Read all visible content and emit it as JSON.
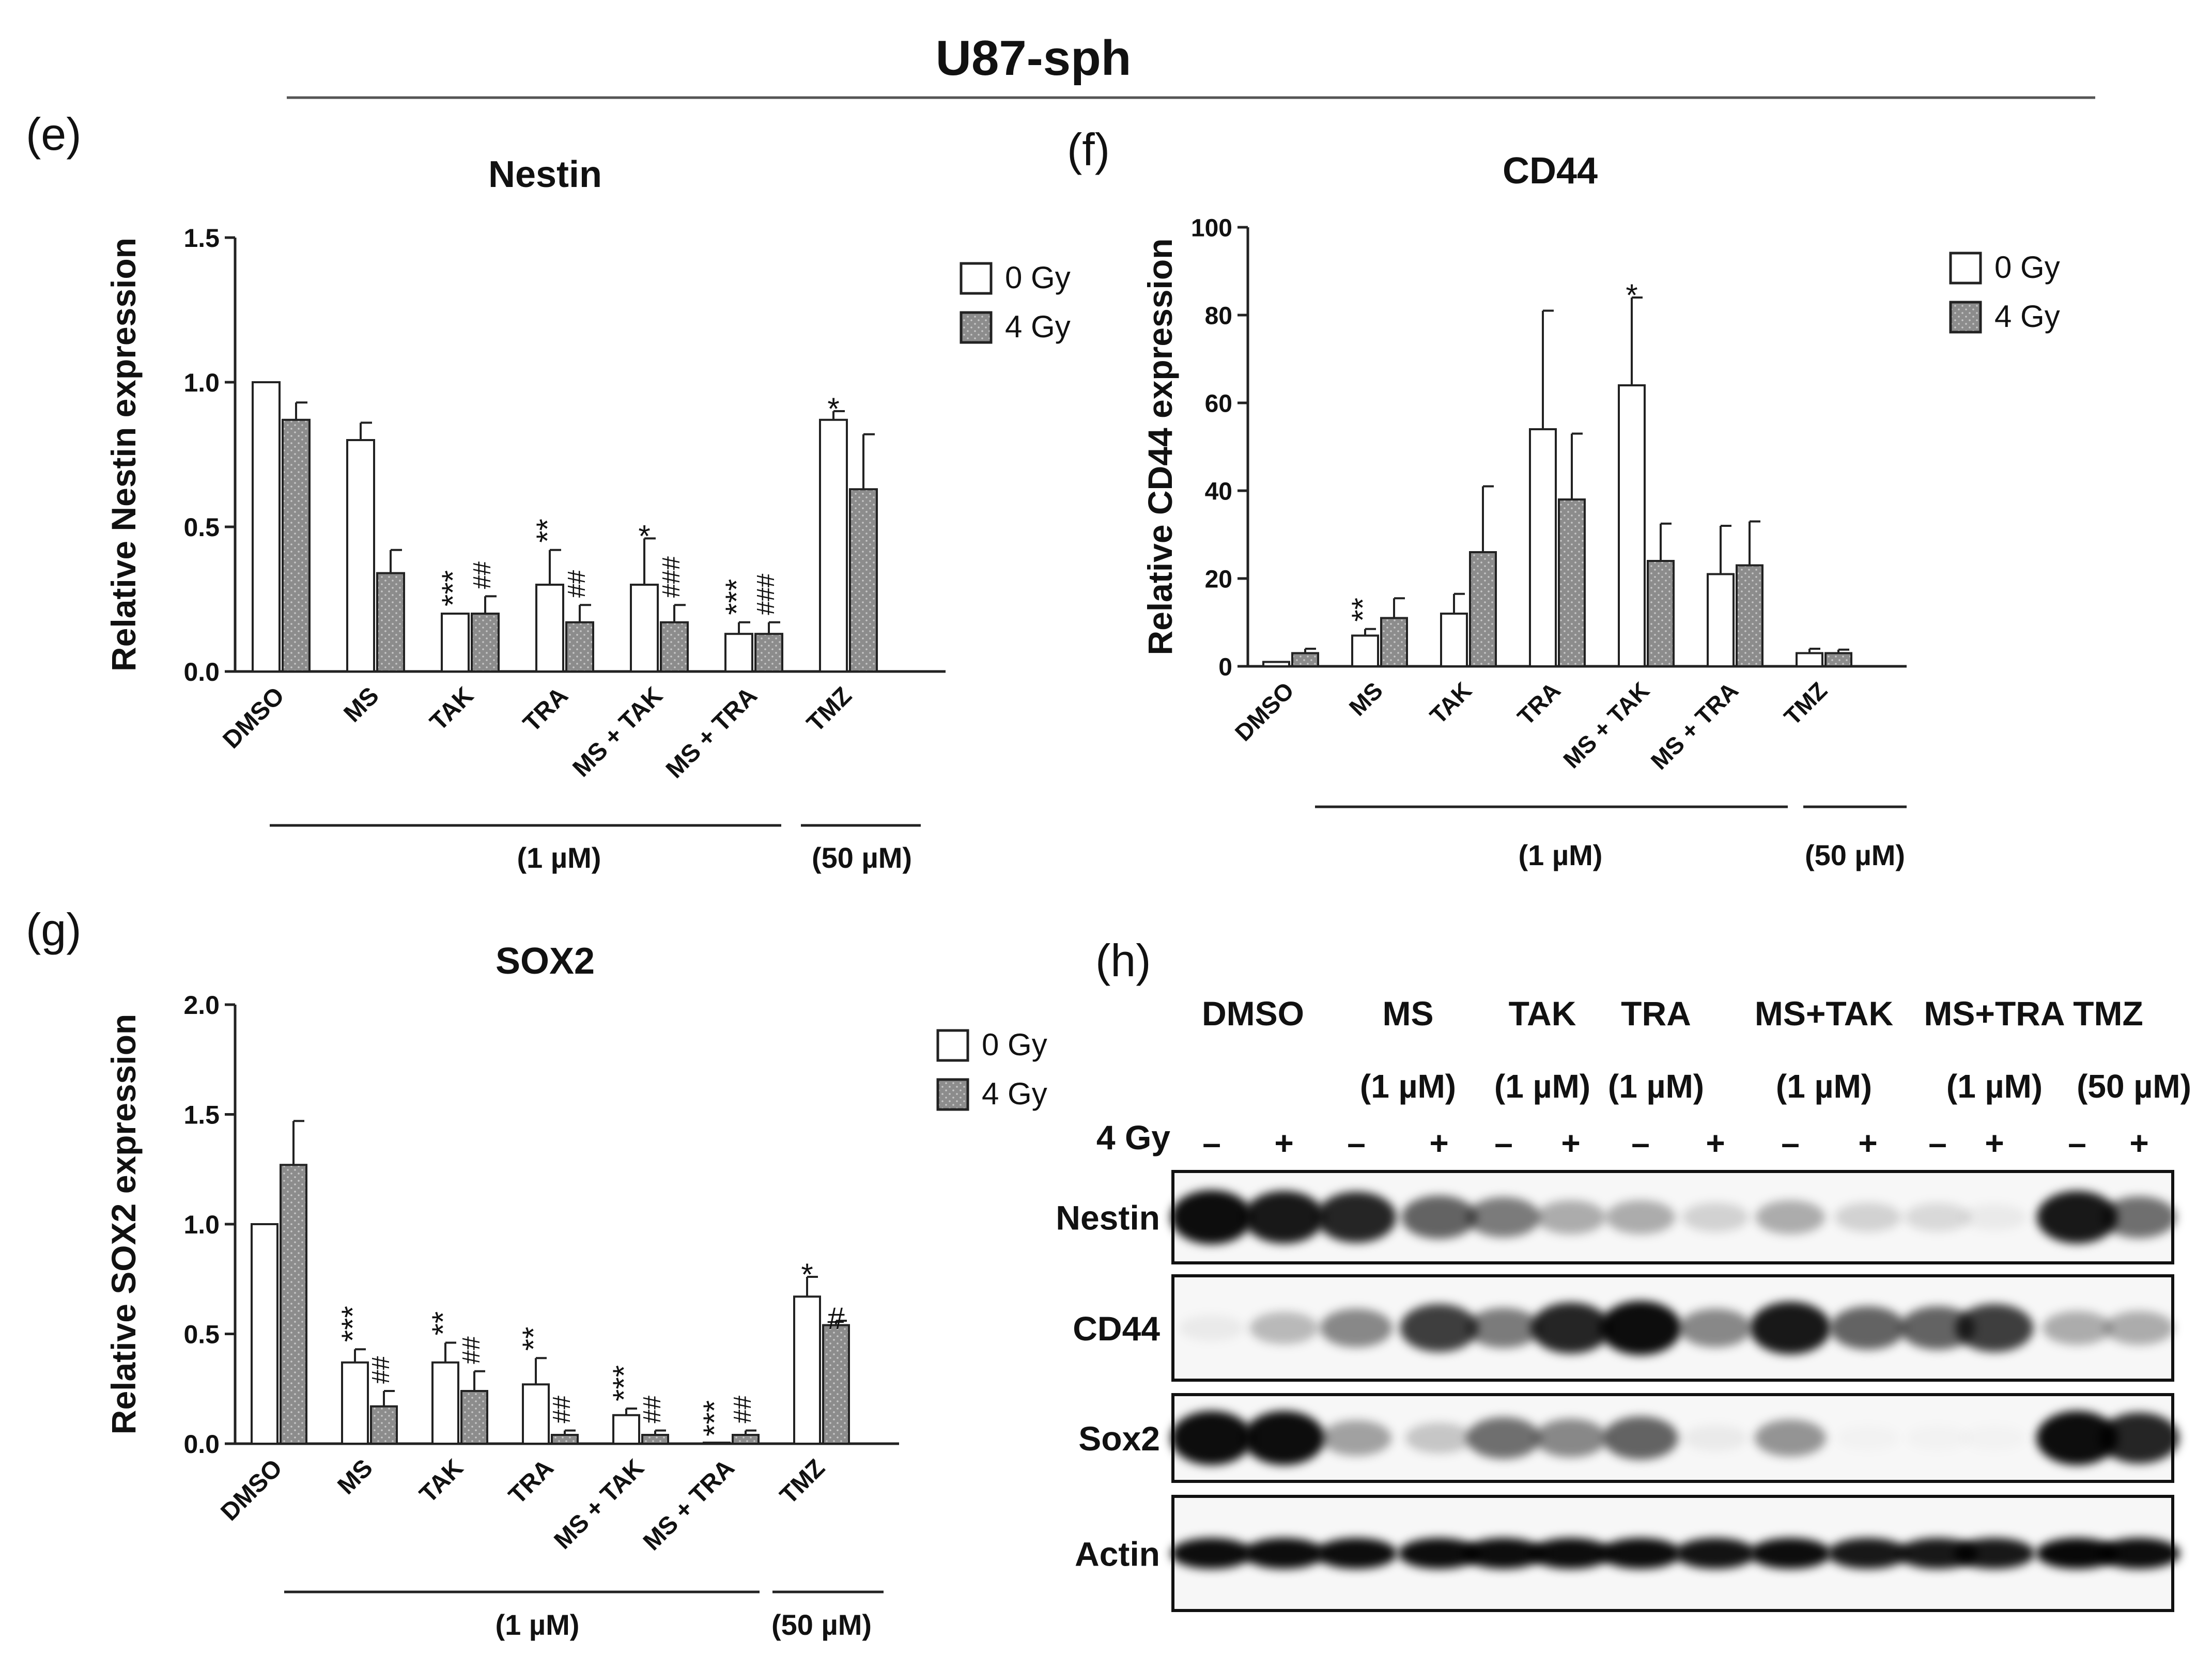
{
  "figure_title": "U87-sph",
  "chart_data": [
    {
      "id": "e",
      "panel_label": "(e)",
      "type": "bar",
      "title": "Nestin",
      "xlabel": "",
      "ylabel": "Relative Nestin expression",
      "ylim": [
        0,
        1.5
      ],
      "yticks": [
        "0.0",
        "0.5",
        "1.0",
        "1.5"
      ],
      "ytick_values": [
        0,
        0.5,
        1.0,
        1.5
      ],
      "categories": [
        "DMSO",
        "MS",
        "TAK",
        "TRA",
        "MS + TAK",
        "MS + TRA",
        "TMZ"
      ],
      "series": [
        {
          "name": "0 Gy",
          "values": [
            1.0,
            0.8,
            0.2,
            0.3,
            0.3,
            0.13,
            0.87
          ],
          "errors": [
            0,
            0.06,
            0,
            0.12,
            0.16,
            0.04,
            0.03
          ],
          "marks": [
            "",
            "",
            "***",
            "**",
            "*",
            "***",
            "*"
          ]
        },
        {
          "name": "4 Gy",
          "values": [
            0.87,
            0.34,
            0.2,
            0.17,
            0.17,
            0.13,
            0.63
          ],
          "errors": [
            0.06,
            0.08,
            0.06,
            0.06,
            0.06,
            0.04,
            0.19
          ],
          "marks": [
            "",
            "",
            "##",
            "##",
            "###",
            "###",
            ""
          ]
        }
      ],
      "legend": [
        "0 Gy",
        "4 Gy"
      ],
      "legend_position": "top-right",
      "dose_labels": [
        "(1 µM)",
        "(50 µM)"
      ]
    },
    {
      "id": "f",
      "panel_label": "(f)",
      "type": "bar",
      "title": "CD44",
      "xlabel": "",
      "ylabel": "Relative CD44 expression",
      "ylim": [
        0,
        100
      ],
      "yticks": [
        "0",
        "20",
        "40",
        "60",
        "80",
        "100"
      ],
      "ytick_values": [
        0,
        20,
        40,
        60,
        80,
        100
      ],
      "categories": [
        "DMSO",
        "MS",
        "TAK",
        "TRA",
        "MS + TAK",
        "MS + TRA",
        "TMZ"
      ],
      "series": [
        {
          "name": "0 Gy",
          "values": [
            1,
            7,
            12,
            54,
            64,
            21,
            3
          ],
          "errors": [
            0,
            1.5,
            4.5,
            27,
            20,
            11,
            1
          ],
          "marks": [
            "",
            "**",
            "",
            "",
            "*",
            "",
            ""
          ]
        },
        {
          "name": "4 Gy",
          "values": [
            3,
            11,
            26,
            38,
            24,
            23,
            3
          ],
          "errors": [
            1,
            4.5,
            15,
            15,
            8.5,
            10,
            0.8
          ],
          "marks": [
            "",
            "",
            "",
            "",
            "",
            "",
            ""
          ]
        }
      ],
      "legend": [
        "0 Gy",
        "4 Gy"
      ],
      "legend_position": "top-right",
      "dose_labels": [
        "(1 µM)",
        "(50 µM)"
      ]
    },
    {
      "id": "g",
      "panel_label": "(g)",
      "type": "bar",
      "title": "SOX2",
      "xlabel": "",
      "ylabel": "Relative SOX2 expression",
      "ylim": [
        0,
        2.0
      ],
      "yticks": [
        "0.0",
        "0.5",
        "1.0",
        "1.5",
        "2.0"
      ],
      "ytick_values": [
        0,
        0.5,
        1.0,
        1.5,
        2.0
      ],
      "categories": [
        "DMSO",
        "MS",
        "TAK",
        "TRA",
        "MS + TAK",
        "MS + TRA",
        "TMZ"
      ],
      "series": [
        {
          "name": "0 Gy",
          "values": [
            1.0,
            0.37,
            0.37,
            0.27,
            0.13,
            0.0,
            0.67
          ],
          "errors": [
            0,
            0.06,
            0.09,
            0.12,
            0.03,
            0,
            0.09
          ],
          "marks": [
            "",
            "***",
            "**",
            "**",
            "***",
            "***",
            "*"
          ]
        },
        {
          "name": "4 Gy",
          "values": [
            1.27,
            0.17,
            0.24,
            0.04,
            0.04,
            0.04,
            0.54
          ],
          "errors": [
            0.2,
            0.07,
            0.09,
            0.02,
            0.02,
            0.02,
            0.02
          ],
          "marks": [
            "",
            "##",
            "##",
            "##",
            "##",
            "##",
            "#"
          ]
        }
      ],
      "legend": [
        "0 Gy",
        "4 Gy"
      ],
      "legend_position": "top-right",
      "dose_labels": [
        "(1 µM)",
        "(50 µM)"
      ]
    }
  ],
  "blot": {
    "panel_label": "(h)",
    "treatments": [
      "DMSO",
      "MS",
      "TAK",
      "TRA",
      "MS+TAK",
      "MS+TRA",
      "TMZ"
    ],
    "doses": [
      "",
      "(1 µM)",
      "(1 µM)",
      "(1 µM)",
      "(1 µM)",
      "(1 µM)",
      "(50 µM)"
    ],
    "gy_label": "4 Gy",
    "gy_signs": [
      "–",
      "+",
      "–",
      "+",
      "–",
      "+",
      "–",
      "+",
      "–",
      "+",
      "–",
      "+",
      "–",
      "+"
    ],
    "bands": [
      {
        "name": "Nestin",
        "intensities": [
          0.95,
          0.9,
          0.85,
          0.6,
          0.5,
          0.3,
          0.3,
          0.15,
          0.3,
          0.15,
          0.12,
          0.05,
          0.9,
          0.55
        ]
      },
      {
        "name": "CD44",
        "intensities": [
          0.05,
          0.25,
          0.45,
          0.75,
          0.5,
          0.85,
          0.95,
          0.45,
          0.9,
          0.6,
          0.6,
          0.75,
          0.3,
          0.3
        ]
      },
      {
        "name": "Sox2",
        "intensities": [
          0.95,
          0.95,
          0.35,
          0.2,
          0.55,
          0.45,
          0.6,
          0.05,
          0.4,
          0.02,
          0.02,
          0.02,
          0.95,
          0.85
        ]
      },
      {
        "name": "Actin",
        "intensities": [
          0.95,
          0.95,
          0.95,
          0.95,
          0.95,
          0.95,
          0.95,
          0.92,
          0.95,
          0.9,
          0.9,
          0.9,
          0.97,
          0.95
        ]
      }
    ]
  }
}
